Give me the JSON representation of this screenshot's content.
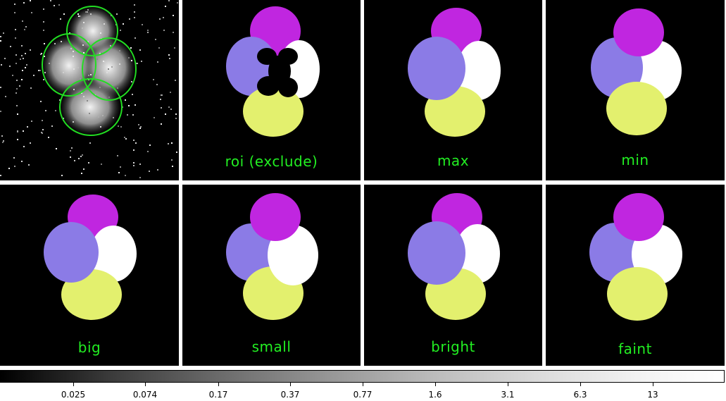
{
  "panels": [
    {
      "label": "",
      "kind": "source"
    },
    {
      "label": "roi (exclude)",
      "kind": "roi-exclude"
    },
    {
      "label": "max",
      "kind": "max"
    },
    {
      "label": "min",
      "kind": "min"
    },
    {
      "label": "big",
      "kind": "big"
    },
    {
      "label": "small",
      "kind": "small"
    },
    {
      "label": "bright",
      "kind": "bright"
    },
    {
      "label": "faint",
      "kind": "faint"
    }
  ],
  "region_colors": {
    "top": "#c026e0",
    "left": "#8b7be6",
    "right": "#ffffff",
    "bottom": "#e3f06e",
    "outline": "#22dd22",
    "label": "#22ee22"
  },
  "colorbar": {
    "tick_labels": [
      "0.025",
      "0.074",
      "0.17",
      "0.37",
      "0.77",
      "1.6",
      "3.1",
      "6.3",
      "13"
    ]
  }
}
